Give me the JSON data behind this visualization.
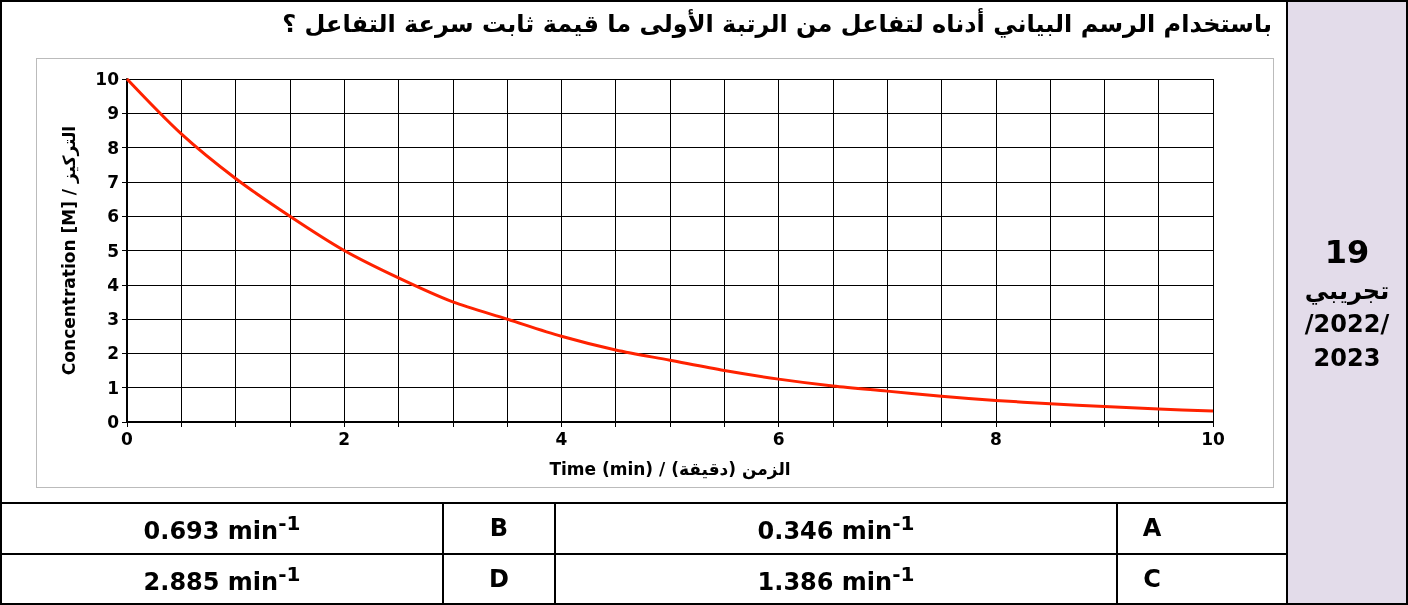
{
  "chart_data": {
    "type": "line",
    "title": "باستخدام الرسم البياني أدناه لتفاعل من الرتبة الأولى ما قيمة ثابت سرعة التفاعل ؟",
    "xlabel": "Time (min) / الزمن (دقيقة)",
    "ylabel": "Concentration [M] / التركيز",
    "x": [
      0,
      0.5,
      1,
      1.5,
      2,
      2.5,
      3,
      3.5,
      4,
      4.5,
      5,
      5.5,
      6,
      6.5,
      7,
      7.5,
      8,
      8.5,
      9,
      9.5,
      10
    ],
    "series": [
      {
        "color": "#ff2200",
        "values": [
          10,
          8.4,
          7.1,
          6,
          5,
          4.2,
          3.5,
          3,
          2.5,
          2.1,
          1.8,
          1.5,
          1.25,
          1.05,
          0.9,
          0.75,
          0.63,
          0.53,
          0.45,
          0.38,
          0.32
        ]
      }
    ],
    "xlim": [
      0,
      10
    ],
    "ylim": [
      0,
      10
    ],
    "xticks": [
      0,
      {
        "value": 0.5,
        "label": null
      },
      {
        "value": 1,
        "label": null
      },
      {
        "value": 1.5,
        "label": null
      },
      2,
      {
        "value": 2.5,
        "label": null
      },
      {
        "value": 3,
        "label": null
      },
      {
        "value": 3.5,
        "label": null
      },
      4,
      {
        "value": 4.5,
        "label": null
      },
      {
        "value": 5,
        "label": null
      },
      {
        "value": 5.5,
        "label": null
      },
      6,
      {
        "value": 6.5,
        "label": null
      },
      {
        "value": 7,
        "label": null
      },
      {
        "value": 7.5,
        "label": null
      },
      8,
      {
        "value": 8.5,
        "label": null
      },
      {
        "value": 9,
        "label": null
      },
      {
        "value": 9.5,
        "label": null
      },
      10
    ],
    "yticks": [
      0,
      1,
      2,
      3,
      4,
      5,
      6,
      7,
      8,
      9,
      10
    ],
    "grid": true,
    "marker": "none",
    "line_style": "solid",
    "annotations": [
      "19",
      "تجريبي",
      "/2022/",
      "2023",
      "0.693 min$^{-1}$",
      "B",
      "0.346 min$^{-1}$",
      "A",
      "2.885 min$^{-1}$",
      "D",
      "1.386 min$^{-1}$",
      "C"
    ]
  }
}
